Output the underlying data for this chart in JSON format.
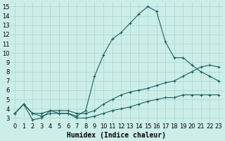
{
  "xlabel": "Humidex (Indice chaleur)",
  "bg_color": "#cceee8",
  "grid_color": "#aad4ce",
  "line_color": "#1a6060",
  "xlim": [
    -0.5,
    23.5
  ],
  "ylim": [
    2.5,
    15.5
  ],
  "xticks": [
    0,
    1,
    2,
    3,
    4,
    5,
    6,
    7,
    8,
    9,
    10,
    11,
    12,
    13,
    14,
    15,
    16,
    17,
    18,
    19,
    20,
    21,
    22,
    23
  ],
  "yticks": [
    3,
    4,
    5,
    6,
    7,
    8,
    9,
    10,
    11,
    12,
    13,
    14,
    15
  ],
  "line1_x": [
    0,
    1,
    2,
    3,
    4,
    5,
    6,
    7,
    8,
    9,
    10,
    11,
    12,
    13,
    14,
    15,
    16,
    17,
    18,
    19,
    20,
    21,
    22,
    23
  ],
  "line1_y": [
    3.5,
    4.5,
    2.8,
    3.0,
    3.8,
    3.5,
    3.5,
    3.2,
    3.8,
    7.5,
    9.8,
    11.5,
    12.2,
    13.2,
    14.2,
    15.0,
    14.5,
    11.2,
    9.5,
    9.5,
    8.7,
    8.0,
    7.5,
    7.0
  ],
  "line2_x": [
    0,
    1,
    2,
    3,
    4,
    5,
    6,
    7,
    8,
    9,
    10,
    11,
    12,
    13,
    14,
    15,
    16,
    17,
    18,
    19,
    20,
    21,
    22,
    23
  ],
  "line2_y": [
    3.5,
    4.5,
    3.5,
    3.5,
    3.8,
    3.8,
    3.8,
    3.5,
    3.5,
    3.8,
    4.5,
    5.0,
    5.5,
    5.8,
    6.0,
    6.2,
    6.5,
    6.8,
    7.0,
    7.5,
    8.0,
    8.5,
    8.7,
    8.5
  ],
  "line3_x": [
    0,
    1,
    2,
    3,
    4,
    5,
    6,
    7,
    8,
    9,
    10,
    11,
    12,
    13,
    14,
    15,
    16,
    17,
    18,
    19,
    20,
    21,
    22,
    23
  ],
  "line3_y": [
    3.5,
    4.5,
    3.5,
    3.2,
    3.5,
    3.5,
    3.5,
    3.0,
    3.0,
    3.2,
    3.5,
    3.8,
    4.0,
    4.2,
    4.5,
    4.8,
    5.0,
    5.2,
    5.2,
    5.5,
    5.5,
    5.5,
    5.5,
    5.5
  ],
  "xlabel_fontsize": 7,
  "tick_fontsize": 6,
  "figw": 3.2,
  "figh": 2.0,
  "dpi": 100
}
